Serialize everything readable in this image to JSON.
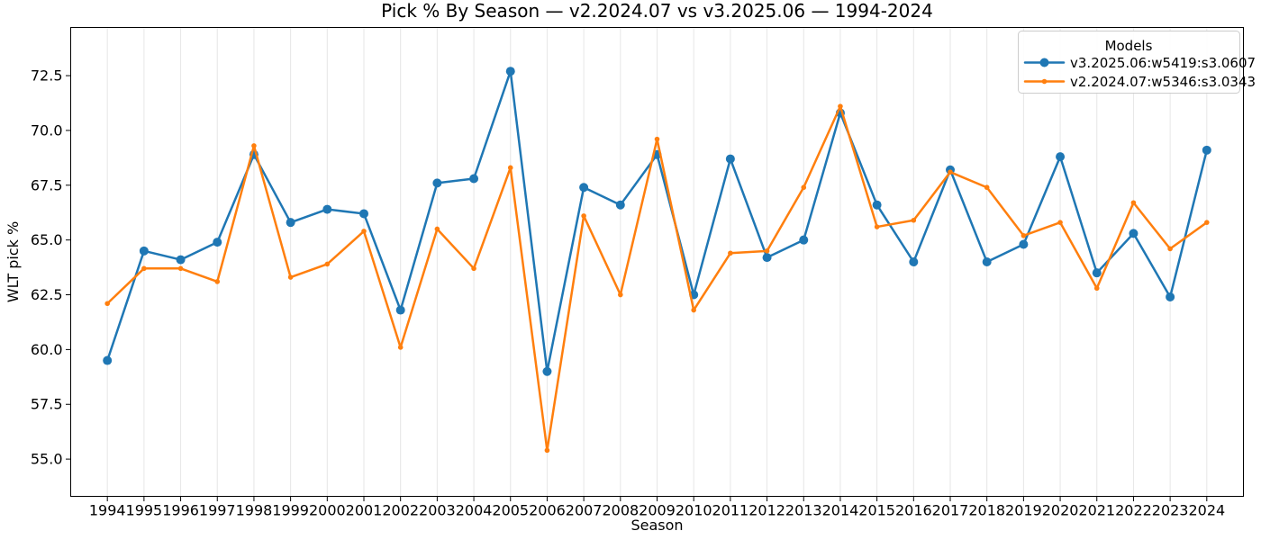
{
  "figure": {
    "title": "Pick % By Season — v2.2024.07 vs v3.2025.06 — 1994-2024",
    "xlabel": "Season",
    "ylabel": "WLT pick %"
  },
  "legend": {
    "title": "Models"
  },
  "colors": {
    "series_v3": "#1f77b4",
    "series_v2": "#ff7f0e",
    "grid": "#e6e6e6",
    "spine": "#000000",
    "text": "#000000",
    "legend_border": "#cccccc",
    "background": "#ffffff"
  },
  "chart_data": {
    "type": "line",
    "title": "Pick % By Season — v2.2024.07 vs v3.2025.06 — 1994-2024",
    "xlabel": "Season",
    "ylabel": "WLT pick %",
    "legend_title": "Models",
    "legend_position": "upper-right",
    "grid": "vertical-only",
    "x": [
      1994,
      1995,
      1996,
      1997,
      1998,
      1999,
      2000,
      2001,
      2002,
      2003,
      2004,
      2005,
      2006,
      2007,
      2008,
      2009,
      2010,
      2011,
      2012,
      2013,
      2014,
      2015,
      2016,
      2017,
      2018,
      2019,
      2020,
      2021,
      2022,
      2023,
      2024
    ],
    "series": [
      {
        "name": "v3.2025.06:w5419:s3.0607",
        "color": "#1f77b4",
        "marker": "circle",
        "marker_radius": 5,
        "values": [
          59.5,
          64.5,
          64.1,
          64.9,
          68.9,
          65.8,
          66.4,
          66.2,
          61.8,
          67.6,
          67.8,
          72.7,
          59.0,
          67.4,
          66.6,
          68.9,
          62.5,
          68.7,
          64.2,
          65.0,
          70.8,
          66.6,
          64.0,
          68.2,
          64.0,
          64.8,
          68.8,
          63.5,
          65.3,
          62.4,
          69.1
        ]
      },
      {
        "name": "v2.2024.07:w5346:s3.0343",
        "color": "#ff7f0e",
        "marker": "circle",
        "marker_radius": 2.8,
        "values": [
          62.1,
          63.7,
          63.7,
          63.1,
          69.3,
          63.3,
          63.9,
          65.4,
          60.1,
          65.5,
          63.7,
          68.3,
          55.4,
          66.1,
          62.5,
          69.6,
          61.8,
          64.4,
          64.5,
          67.4,
          71.1,
          65.6,
          65.9,
          68.1,
          67.4,
          65.2,
          65.8,
          62.8,
          66.7,
          64.6,
          65.8
        ]
      }
    ],
    "xlim": [
      1993,
      2025
    ],
    "ylim": [
      53.3,
      74.7
    ],
    "yticks": [
      55.0,
      57.5,
      60.0,
      62.5,
      65.0,
      67.5,
      70.0,
      72.5
    ]
  }
}
